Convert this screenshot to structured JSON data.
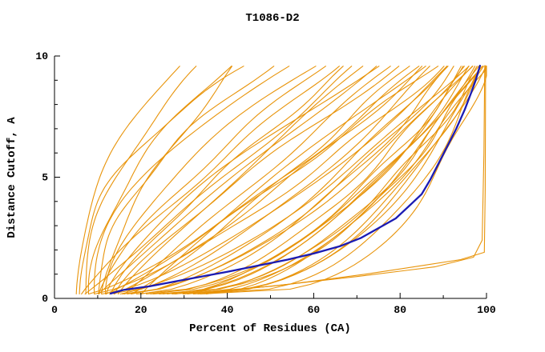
{
  "window": {
    "background": "#ffffff"
  },
  "chart_data": {
    "type": "line",
    "title": "T1086-D2",
    "xlabel": "Percent of Residues (CA)",
    "ylabel": "Distance Cutoff, A",
    "xlim": [
      0,
      100
    ],
    "ylim": [
      0,
      10
    ],
    "x_major_ticks": [
      0,
      20,
      40,
      60,
      80,
      100
    ],
    "x_minor_ticks": [
      10,
      30,
      50,
      70,
      90
    ],
    "y_major_ticks": [
      0,
      5,
      10
    ],
    "y_minor_ticks": [
      1,
      2,
      3,
      4,
      6,
      7,
      8,
      9
    ],
    "grid": false,
    "legend": "none",
    "colors": {
      "axis": "#000000",
      "text": "#000000",
      "model_curves": "#e8940a",
      "highlight_curve": "#1b1bb3"
    },
    "highlight_series": {
      "name": "selected model (blue)",
      "stroke_width": 2.3,
      "points": [
        [
          13,
          0.2
        ],
        [
          16,
          0.35
        ],
        [
          22,
          0.5
        ],
        [
          28,
          0.7
        ],
        [
          34,
          0.9
        ],
        [
          40,
          1.1
        ],
        [
          47,
          1.35
        ],
        [
          54,
          1.6
        ],
        [
          60,
          1.85
        ],
        [
          66,
          2.15
        ],
        [
          71,
          2.5
        ],
        [
          75,
          2.9
        ],
        [
          79,
          3.3
        ],
        [
          82,
          3.8
        ],
        [
          85,
          4.3
        ],
        [
          87,
          4.9
        ],
        [
          89,
          5.6
        ],
        [
          91,
          6.3
        ],
        [
          93,
          7.0
        ],
        [
          95,
          7.8
        ],
        [
          96.5,
          8.5
        ],
        [
          97.5,
          9.0
        ],
        [
          98.5,
          9.6
        ]
      ]
    },
    "orange_curves_encoding": "percent-of-residues x as function of distance cutoff y: x = x0 + (x1-x0)*t^p with t=(y-0.18)/9.42, y in [0.18, 9.6]",
    "orange_curves": [
      {
        "x0": 5,
        "x1": 28,
        "p": 2.0
      },
      {
        "x0": 7,
        "x1": 34,
        "p": 2.0
      },
      {
        "x0": 8,
        "x1": 40,
        "p": 1.8
      },
      {
        "x0": 6,
        "x1": 45,
        "p": 2.4
      },
      {
        "x0": 10,
        "x1": 50,
        "p": 1.9
      },
      {
        "x0": 9,
        "x1": 55,
        "p": 2.1
      },
      {
        "x0": 12,
        "x1": 60,
        "p": 1.7
      },
      {
        "x0": 11,
        "x1": 42,
        "p": 1.5
      },
      {
        "x0": 10,
        "x1": 62,
        "p": 1.3
      },
      {
        "x0": 13,
        "x1": 68,
        "p": 1.2
      },
      {
        "x0": 15,
        "x1": 72,
        "p": 1.1
      },
      {
        "x0": 12,
        "x1": 75,
        "p": 1.4
      },
      {
        "x0": 16,
        "x1": 78,
        "p": 1.0
      },
      {
        "x0": 14,
        "x1": 80,
        "p": 1.2
      },
      {
        "x0": 18,
        "x1": 82,
        "p": 0.9
      },
      {
        "x0": 20,
        "x1": 85,
        "p": 1.1
      },
      {
        "x0": 15,
        "x1": 88,
        "p": 0.7
      },
      {
        "x0": 18,
        "x1": 90,
        "p": 0.65
      },
      {
        "x0": 20,
        "x1": 92,
        "p": 0.6
      },
      {
        "x0": 22,
        "x1": 94,
        "p": 0.55
      },
      {
        "x0": 25,
        "x1": 95,
        "p": 0.5
      },
      {
        "x0": 16,
        "x1": 96,
        "p": 0.6
      },
      {
        "x0": 19,
        "x1": 97,
        "p": 0.5
      },
      {
        "x0": 24,
        "x1": 98,
        "p": 0.45
      },
      {
        "x0": 28,
        "x1": 99,
        "p": 0.5
      },
      {
        "x0": 30,
        "x1": 99.5,
        "p": 0.4
      },
      {
        "x0": 26,
        "x1": 97.5,
        "p": 0.55
      },
      {
        "x0": 21,
        "x1": 96.5,
        "p": 0.5
      },
      {
        "x0": 17,
        "x1": 93,
        "p": 0.6
      },
      {
        "x0": 23,
        "x1": 98.5,
        "p": 0.42
      },
      {
        "x0": 27,
        "x1": 99,
        "p": 0.38
      },
      {
        "x0": 32,
        "x1": 99.5,
        "p": 0.35
      },
      {
        "x0": 34,
        "x1": 100,
        "p": 0.3
      },
      {
        "x0": 8,
        "x1": 85,
        "p": 0.8
      },
      {
        "x0": 9,
        "x1": 90,
        "p": 0.75
      },
      {
        "x0": 11,
        "x1": 92,
        "p": 0.7
      },
      {
        "x0": 13,
        "x1": 95,
        "p": 0.65
      },
      {
        "x0": 7,
        "x1": 70,
        "p": 1.0
      },
      {
        "x0": 6,
        "x1": 65,
        "p": 1.1
      },
      {
        "x0": 28,
        "x1": 96,
        "p": 0.6
      },
      {
        "x0": 31,
        "x1": 98,
        "p": 0.5
      },
      {
        "x0": 33,
        "x1": 99,
        "p": 0.45
      },
      {
        "x0": 35,
        "x1": 100,
        "p": 0.55
      },
      {
        "x0": 14,
        "x1": 86,
        "p": 0.85
      },
      {
        "x0": 12,
        "x1": 88,
        "p": 0.9
      },
      {
        "x0": 10,
        "x1": 74,
        "p": 1.05
      }
    ],
    "extra_orange_curves": [
      {
        "points": [
          [
            34,
            0.2
          ],
          [
            55,
            0.6
          ],
          [
            72,
            1.0
          ],
          [
            85,
            1.35
          ],
          [
            94,
            1.6
          ],
          [
            99.5,
            1.9
          ],
          [
            99.7,
            4.5
          ],
          [
            99.8,
            9.6
          ]
        ]
      },
      {
        "points": [
          [
            30,
            0.2
          ],
          [
            50,
            0.5
          ],
          [
            70,
            0.9
          ],
          [
            88,
            1.3
          ],
          [
            97,
            1.7
          ],
          [
            99,
            2.4
          ],
          [
            99.4,
            6.0
          ],
          [
            99.6,
            9.6
          ]
        ]
      }
    ]
  }
}
